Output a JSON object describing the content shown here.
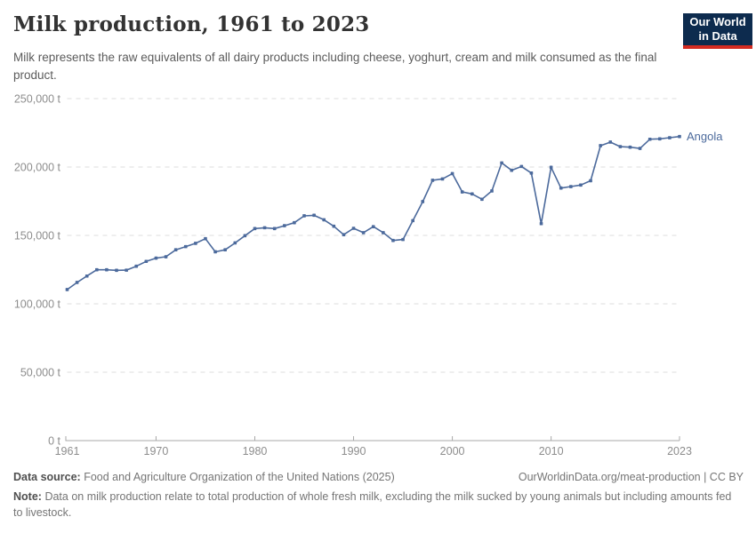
{
  "header": {
    "title": "Milk production, 1961 to 2023",
    "subtitle": "Milk represents the raw equivalents of all dairy products including cheese, yoghurt, cream and milk consumed as the final product.",
    "logo": {
      "line1": "Our World",
      "line2": "in Data"
    }
  },
  "chart_data": {
    "type": "line",
    "title": "Milk production, 1961 to 2023",
    "unit": "t",
    "xlim": [
      1961,
      2023
    ],
    "ylim": [
      0,
      250000
    ],
    "x_ticks": [
      1961,
      1970,
      1980,
      1990,
      2000,
      2010,
      2023
    ],
    "y_ticks": [
      0,
      50000,
      100000,
      150000,
      200000,
      250000
    ],
    "y_tick_suffix": " t",
    "grid": "dashed-horizontal",
    "legend": "end-of-line-label",
    "series": [
      {
        "name": "Angola",
        "color": "#4C6A9C",
        "x": [
          1961,
          1962,
          1963,
          1964,
          1965,
          1966,
          1967,
          1968,
          1969,
          1970,
          1971,
          1972,
          1973,
          1974,
          1975,
          1976,
          1977,
          1978,
          1979,
          1980,
          1981,
          1982,
          1983,
          1984,
          1985,
          1986,
          1987,
          1988,
          1989,
          1990,
          1991,
          1992,
          1993,
          1994,
          1995,
          1996,
          1997,
          1998,
          1999,
          2000,
          2001,
          2002,
          2003,
          2004,
          2005,
          2006,
          2007,
          2008,
          2009,
          2010,
          2011,
          2012,
          2013,
          2014,
          2015,
          2016,
          2017,
          2018,
          2019,
          2020,
          2021,
          2022,
          2023
        ],
        "values": [
          110400,
          115600,
          120300,
          124900,
          124900,
          124500,
          124600,
          127500,
          131000,
          133400,
          134400,
          139500,
          141800,
          144200,
          147600,
          138000,
          139500,
          144500,
          149800,
          155000,
          155600,
          155000,
          157100,
          159300,
          164300,
          164700,
          161400,
          156700,
          150500,
          155200,
          152000,
          156400,
          152000,
          146300,
          147000,
          160800,
          174700,
          190300,
          191300,
          195200,
          181800,
          180300,
          176400,
          182500,
          203000,
          197600,
          200400,
          195600,
          158600,
          199800,
          184600,
          185700,
          186800,
          190000,
          215600,
          218200,
          214900,
          214500,
          213600,
          220300,
          220600,
          221400,
          222300
        ]
      }
    ]
  },
  "footer": {
    "datasource_label": "Data source:",
    "datasource": "Food and Agriculture Organization of the United Nations (2025)",
    "link": "OurWorldinData.org/meat-production | CC BY",
    "note_label": "Note:",
    "note": "Data on milk production relate to total production of whole fresh milk, excluding the milk sucked by young animals but including amounts fed to livestock."
  },
  "colors": {
    "line": "#4C6A9C",
    "grid": "#dcdcdc",
    "axis": "#a8a8a8",
    "tick_text": "#8d8d8d",
    "logo_bg": "#0d2b4e",
    "logo_bar": "#d42b21"
  }
}
